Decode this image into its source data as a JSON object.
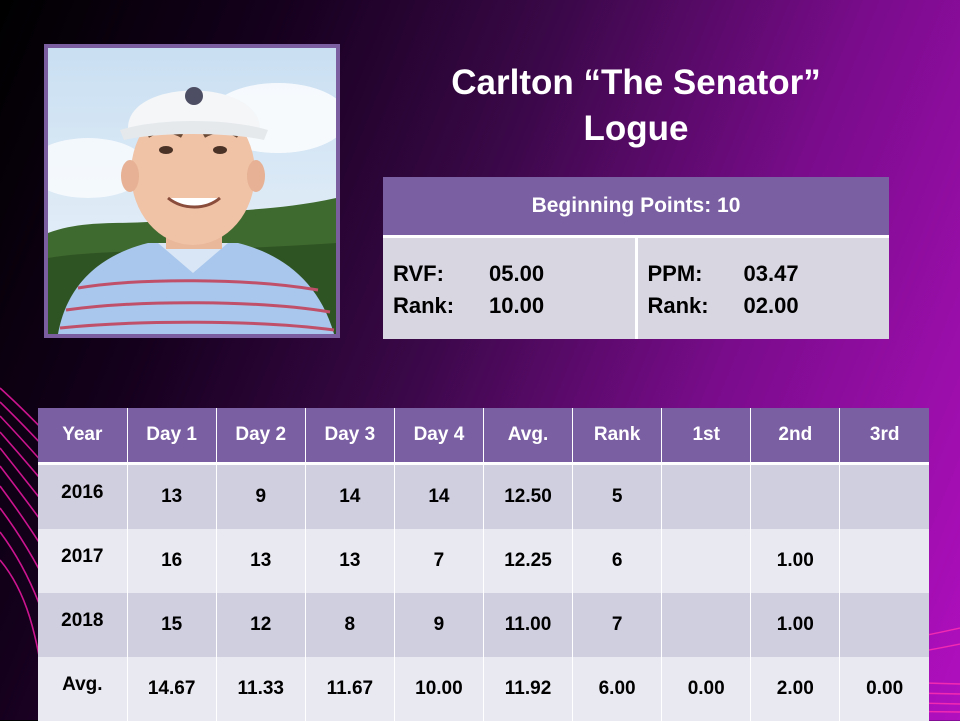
{
  "colors": {
    "header_purple": "#7a5fa3",
    "row_band_dark": "#cfcfe0",
    "row_band_light": "#e9e9f1",
    "background_dark": "#000000",
    "background_magenta": "#b10fbf",
    "accent_lines": "#e0179c"
  },
  "player": {
    "name_line1": "Carlton “The Senator”",
    "name_line2": "Logue",
    "photo_icon": "player-photo"
  },
  "summary": {
    "beginning_points": "Beginning Points: 10",
    "left": {
      "k1": "RVF:",
      "v1": "05.00",
      "k2": "Rank:",
      "v2": "10.00"
    },
    "right": {
      "k1": "PPM:",
      "v1": "03.47",
      "k2": "Rank:",
      "v2": "02.00"
    }
  },
  "results": {
    "headers": [
      "Year",
      "Day 1",
      "Day 2",
      "Day 3",
      "Day 4",
      "Avg.",
      "Rank",
      "1st",
      "2nd",
      "3rd"
    ],
    "rows": [
      [
        "2016",
        "13",
        "9",
        "14",
        "14",
        "12.50",
        "5",
        "",
        "",
        ""
      ],
      [
        "2017",
        "16",
        "13",
        "13",
        "7",
        "12.25",
        "6",
        "",
        "1.00",
        ""
      ],
      [
        "2018",
        "15",
        "12",
        "8",
        "9",
        "11.00",
        "7",
        "",
        "1.00",
        ""
      ],
      [
        "Avg.",
        "14.67",
        "11.33",
        "11.67",
        "10.00",
        "11.92",
        "6.00",
        "0.00",
        "2.00",
        "0.00"
      ]
    ]
  }
}
